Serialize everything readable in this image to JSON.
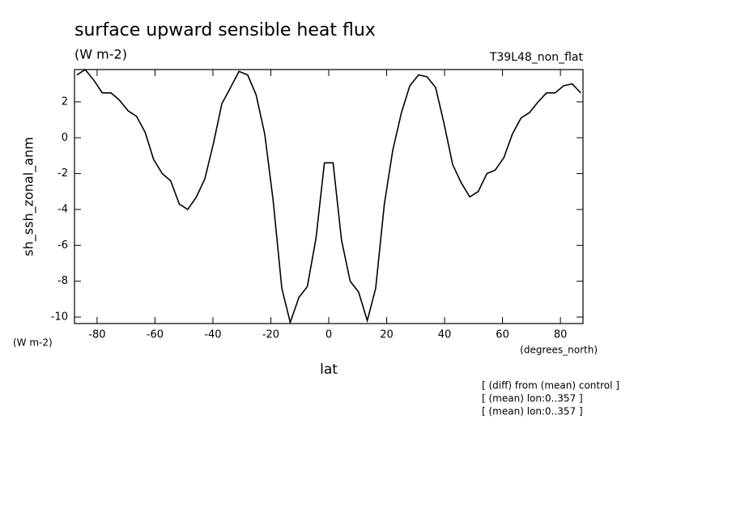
{
  "chart_data": {
    "type": "line",
    "title": "surface upward sensible heat flux",
    "subtitle": "(W m-2)",
    "dataset_label": "T39L48_non_flat",
    "y_label": "sh_ssh_zonal_anm",
    "y_units": "(W m-2)",
    "x_units": "(degrees_north)",
    "x_label": "lat",
    "notes": [
      "[ (diff) from (mean) control ]",
      "[ (mean) lon:0..357 ]",
      "[ (mean) lon:0..357 ]"
    ],
    "x": [
      -87.0,
      -84.1,
      -81.1,
      -78.2,
      -75.2,
      -72.3,
      -69.3,
      -66.4,
      -63.4,
      -60.5,
      -57.5,
      -54.6,
      -51.6,
      -48.7,
      -45.7,
      -42.8,
      -39.8,
      -36.9,
      -33.9,
      -31.0,
      -28.0,
      -25.1,
      -22.1,
      -19.2,
      -16.2,
      -13.3,
      -10.3,
      -7.4,
      -4.4,
      -1.5,
      1.5,
      4.4,
      7.4,
      10.3,
      13.3,
      16.2,
      19.2,
      22.1,
      25.1,
      28.0,
      31.0,
      33.9,
      36.9,
      39.8,
      42.8,
      45.7,
      48.7,
      51.6,
      54.6,
      57.5,
      60.5,
      63.4,
      66.4,
      69.3,
      72.3,
      75.2,
      78.2,
      81.1,
      84.1,
      87.0
    ],
    "series": [
      {
        "name": "sh_ssh_zonal_anm",
        "color": "#000000",
        "values": [
          3.5,
          3.8,
          3.2,
          2.5,
          2.5,
          2.1,
          1.5,
          1.2,
          0.3,
          -1.2,
          -2.0,
          -2.4,
          -3.7,
          -4.0,
          -3.3,
          -2.3,
          -0.3,
          1.9,
          2.8,
          3.7,
          3.5,
          2.4,
          0.2,
          -3.5,
          -8.4,
          -10.3,
          -8.9,
          -8.3,
          -5.6,
          -1.4,
          -1.4,
          -5.7,
          -8.0,
          -8.6,
          -10.2,
          -8.4,
          -3.7,
          -0.7,
          1.4,
          2.9,
          3.5,
          3.4,
          2.8,
          0.8,
          -1.5,
          -2.5,
          -3.3,
          -3.0,
          -2.0,
          -1.8,
          -1.1,
          0.2,
          1.1,
          1.4,
          2.0,
          2.5,
          2.5,
          2.9,
          3.0,
          2.5
        ]
      }
    ],
    "xlim": [
      -87.8,
      87.8
    ],
    "ylim": [
      -10.36,
      3.8
    ],
    "xticks": [
      -80,
      -60,
      -40,
      -20,
      0,
      20,
      40,
      60,
      80
    ],
    "yticks": [
      -10,
      -8,
      -6,
      -4,
      -2,
      0,
      2
    ]
  }
}
